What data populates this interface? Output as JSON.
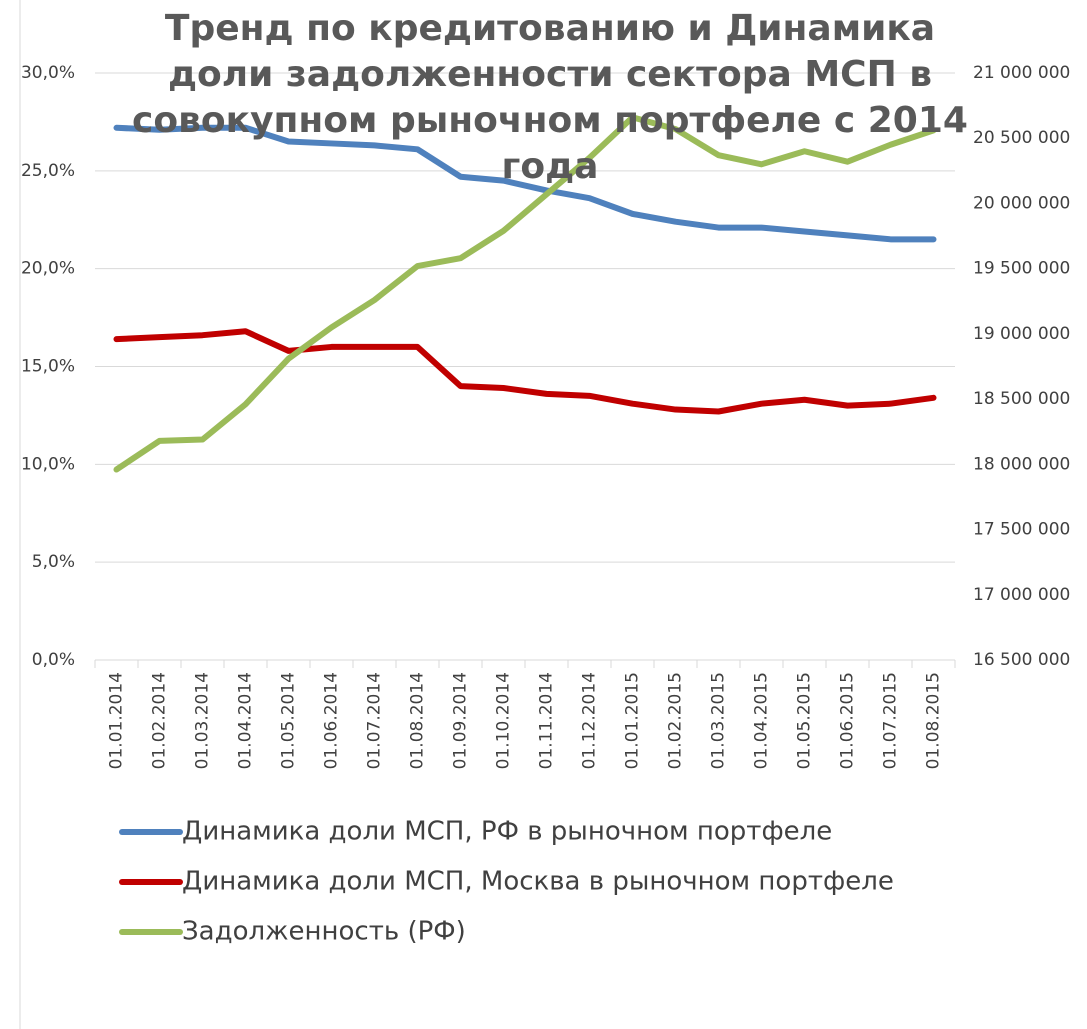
{
  "chart_data": {
    "type": "line",
    "title": "Тренд по кредитованию и Динамика доли задолженности сектора МСП в совокупном рыночном портфеле с 2014 года",
    "categories": [
      "01.01.2014",
      "01.02.2014",
      "01.03.2014",
      "01.04.2014",
      "01.05.2014",
      "01.06.2014",
      "01.07.2014",
      "01.08.2014",
      "01.09.2014",
      "01.10.2014",
      "01.11.2014",
      "01.12.2014",
      "01.01.2015",
      "01.02.2015",
      "01.03.2015",
      "01.04.2015",
      "01.05.2015",
      "01.06.2015",
      "01.07.2015",
      "01.08.2015"
    ],
    "series": [
      {
        "name": "Динамика доли МСП, РФ в рыночном портфеле",
        "color": "#4f81bd",
        "axis": "y",
        "values": [
          27.2,
          27.1,
          27.2,
          27.2,
          26.5,
          26.4,
          26.3,
          26.1,
          24.7,
          24.5,
          24.0,
          23.6,
          22.8,
          22.4,
          22.1,
          22.1,
          21.9,
          21.7,
          21.5,
          21.5
        ]
      },
      {
        "name": "Динамика доли МСП, Москва в рыночном портфеле",
        "color": "#c00000",
        "axis": "y",
        "values": [
          16.4,
          16.5,
          16.6,
          16.8,
          15.8,
          16.0,
          16.0,
          16.0,
          14.0,
          13.9,
          13.6,
          13.5,
          13.1,
          12.8,
          12.7,
          13.1,
          13.3,
          13.0,
          13.1,
          13.4
        ]
      },
      {
        "name": "Задолженность (РФ)",
        "color": "#9bbb59",
        "axis": "y2",
        "values": [
          17960000,
          18180000,
          18190000,
          18460000,
          18810000,
          19050000,
          19260000,
          19520000,
          19580000,
          19790000,
          20070000,
          20350000,
          20660000,
          20570000,
          20370000,
          20300000,
          20400000,
          20320000,
          20450000,
          20560000
        ]
      }
    ],
    "ylim": [
      0,
      30
    ],
    "yticks": [
      {
        "value": 0,
        "label": "0,0%"
      },
      {
        "value": 5,
        "label": "5,0%"
      },
      {
        "value": 10,
        "label": "10,0%"
      },
      {
        "value": 15,
        "label": "15,0%"
      },
      {
        "value": 20,
        "label": "20,0%"
      },
      {
        "value": 25,
        "label": "25,0%"
      },
      {
        "value": 30,
        "label": "30,0%"
      }
    ],
    "y2lim": [
      16500000,
      21000000
    ],
    "y2ticks": [
      {
        "value": 16500000,
        "label": "16 500 000"
      },
      {
        "value": 17000000,
        "label": "17 000 000"
      },
      {
        "value": 17500000,
        "label": "17 500 000"
      },
      {
        "value": 18000000,
        "label": "18 000 000"
      },
      {
        "value": 18500000,
        "label": "18 500 000"
      },
      {
        "value": 19000000,
        "label": "19 000 000"
      },
      {
        "value": 19500000,
        "label": "19 500 000"
      },
      {
        "value": 20000000,
        "label": "20 000 000"
      },
      {
        "value": 20500000,
        "label": "20 500 000"
      },
      {
        "value": 21000000,
        "label": "21 000 000"
      }
    ],
    "grid": true,
    "legend": "bottom"
  }
}
